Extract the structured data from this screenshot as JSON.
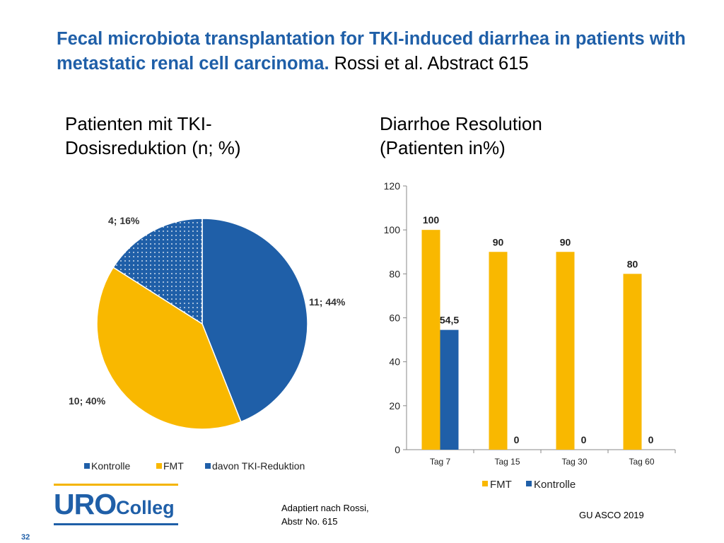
{
  "slide": {
    "title_main": "Fecal microbiota transplantation for TKI-induced diarrhea in patients with metastatic renal cell carcinoma.",
    "title_ref": " Rossi et al. Abstract 615",
    "page_number": "32",
    "footnote_left_line1": "Adaptiert nach Rossi,",
    "footnote_left_line2": "Abstr No. 615",
    "footnote_right": "GU ASCO 2019",
    "logo_main": "URO",
    "logo_sub": "Colleg",
    "colors": {
      "blue": "#1f5fa8",
      "orange": "#f9b800",
      "title_blue": "#1f5fa8"
    }
  },
  "chart_data": [
    {
      "type": "pie",
      "heading_line1": "Patienten mit TKI-",
      "heading_line2": "Dosisreduktion (n; %)",
      "slices": [
        {
          "name": "Kontrolle",
          "value": 11,
          "percent": 44,
          "label": "11; 44%",
          "color": "#1f5fa8",
          "pattern": "solid"
        },
        {
          "name": "FMT",
          "value": 10,
          "percent": 40,
          "label": "10; 40%",
          "color": "#f9b800",
          "pattern": "solid"
        },
        {
          "name": "davon TKI-Reduktion",
          "value": 4,
          "percent": 16,
          "label": "4; 16%",
          "color": "#1f5fa8",
          "pattern": "dotted"
        }
      ],
      "legend": [
        "Kontrolle",
        "FMT",
        "davon TKI-Reduktion"
      ],
      "legend_position": "bottom"
    },
    {
      "type": "bar",
      "heading_line1": "Diarrhoe Resolution",
      "heading_line2": "(Patienten in%)",
      "categories": [
        "Tag 7",
        "Tag 15",
        "Tag 30",
        "Tag 60"
      ],
      "series": [
        {
          "name": "FMT",
          "values": [
            100,
            90,
            90,
            80
          ],
          "labels": [
            "100",
            "90",
            "90",
            "80"
          ],
          "color": "#f9b800"
        },
        {
          "name": "Kontrolle",
          "values": [
            54.5,
            0,
            0,
            0
          ],
          "labels": [
            "54,5",
            "0",
            "0",
            "0"
          ],
          "color": "#1f5fa8"
        }
      ],
      "ylim": [
        0,
        120
      ],
      "yticks": [
        "0",
        "20",
        "40",
        "60",
        "80",
        "100",
        "120"
      ],
      "grid": false,
      "legend_position": "bottom"
    }
  ]
}
